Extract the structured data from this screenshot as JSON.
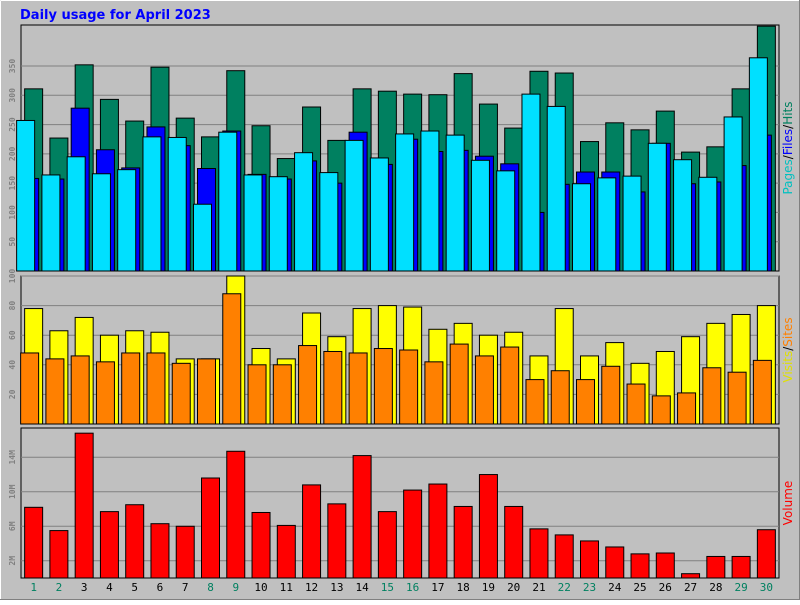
{
  "chart_data": {
    "type": "bar",
    "title": "Daily usage for April 2023",
    "categories": [
      "1",
      "2",
      "3",
      "4",
      "5",
      "6",
      "7",
      "8",
      "9",
      "10",
      "11",
      "12",
      "13",
      "14",
      "15",
      "16",
      "17",
      "18",
      "19",
      "20",
      "21",
      "22",
      "23",
      "24",
      "25",
      "26",
      "27",
      "28",
      "29",
      "30"
    ],
    "weekend_days": [
      "1",
      "2",
      "8",
      "9",
      "15",
      "16",
      "22",
      "23",
      "29",
      "30"
    ],
    "panels": [
      {
        "id": "hits",
        "y_ticks": [
          "50",
          "100",
          "150",
          "200",
          "250",
          "300",
          "350"
        ],
        "ylim": [
          0,
          420
        ],
        "label_parts": [
          {
            "text": "Pages",
            "color": "#00c0c0"
          },
          {
            "text": "/",
            "color": "#000000"
          },
          {
            "text": "Files",
            "color": "#0000ff"
          },
          {
            "text": "/",
            "color": "#000000"
          },
          {
            "text": "Hits",
            "color": "#008060"
          }
        ],
        "series": [
          {
            "name": "Hits",
            "color": "#008060",
            "values": [
              311,
              227,
              352,
              293,
              256,
              348,
              261,
              229,
              342,
              248,
              192,
              280,
              223,
              311,
              307,
              302,
              301,
              337,
              285,
              244,
              341,
              338,
              221,
              253,
              241,
              273,
              203,
              212,
              311,
              418
            ]
          },
          {
            "name": "Files",
            "color": "#0000ff",
            "values": [
              158,
              157,
              278,
              207,
              176,
              246,
              214,
              175,
              239,
              165,
              157,
              188,
              150,
              237,
              182,
              225,
              204,
              206,
              196,
              183,
              100,
              148,
              169,
              169,
              135,
              218,
              149,
              152,
              180,
              232
            ]
          },
          {
            "name": "Pages",
            "color": "#00e0ff",
            "values": [
              257,
              164,
              195,
              166,
              173,
              229,
              228,
              114,
              237,
              164,
              161,
              202,
              168,
              223,
              193,
              234,
              239,
              232,
              189,
              171,
              302,
              281,
              149,
              159,
              162,
              218,
              190,
              160,
              263,
              364
            ]
          }
        ]
      },
      {
        "id": "visits",
        "y_ticks": [
          "20",
          "40",
          "60",
          "80",
          "100"
        ],
        "ylim": [
          0,
          100
        ],
        "label_parts": [
          {
            "text": "Visits",
            "color": "#e0e000"
          },
          {
            "text": "/",
            "color": "#000000"
          },
          {
            "text": "Sites",
            "color": "#ff8000"
          }
        ],
        "series": [
          {
            "name": "Visits",
            "color": "#ffff00",
            "values": [
              78,
              63,
              72,
              60,
              63,
              62,
              44,
              44,
              100,
              51,
              44,
              75,
              59,
              78,
              80,
              79,
              64,
              68,
              60,
              62,
              46,
              78,
              46,
              55,
              41,
              49,
              59,
              68,
              74,
              80
            ]
          },
          {
            "name": "Sites",
            "color": "#ff8000",
            "values": [
              48,
              44,
              46,
              42,
              48,
              48,
              41,
              44,
              88,
              40,
              40,
              53,
              49,
              48,
              51,
              50,
              42,
              54,
              46,
              52,
              30,
              36,
              30,
              39,
              27,
              19,
              21,
              38,
              35,
              43
            ]
          }
        ]
      },
      {
        "id": "volume",
        "y_ticks": [
          "2M",
          "6M",
          "10M",
          "14M"
        ],
        "ylim": [
          0,
          17.4
        ],
        "label_parts": [
          {
            "text": "Volume",
            "color": "#ff0000"
          }
        ],
        "series": [
          {
            "name": "Volume",
            "color": "#ff0000",
            "values": [
              8.2,
              5.5,
              16.8,
              7.7,
              8.5,
              6.3,
              6.0,
              11.6,
              14.7,
              7.6,
              6.1,
              10.8,
              8.6,
              14.2,
              7.7,
              10.2,
              10.9,
              8.3,
              12.0,
              8.3,
              5.7,
              5.0,
              4.3,
              3.6,
              2.8,
              2.9,
              0.5,
              2.5,
              2.5,
              5.6
            ]
          }
        ]
      }
    ]
  }
}
